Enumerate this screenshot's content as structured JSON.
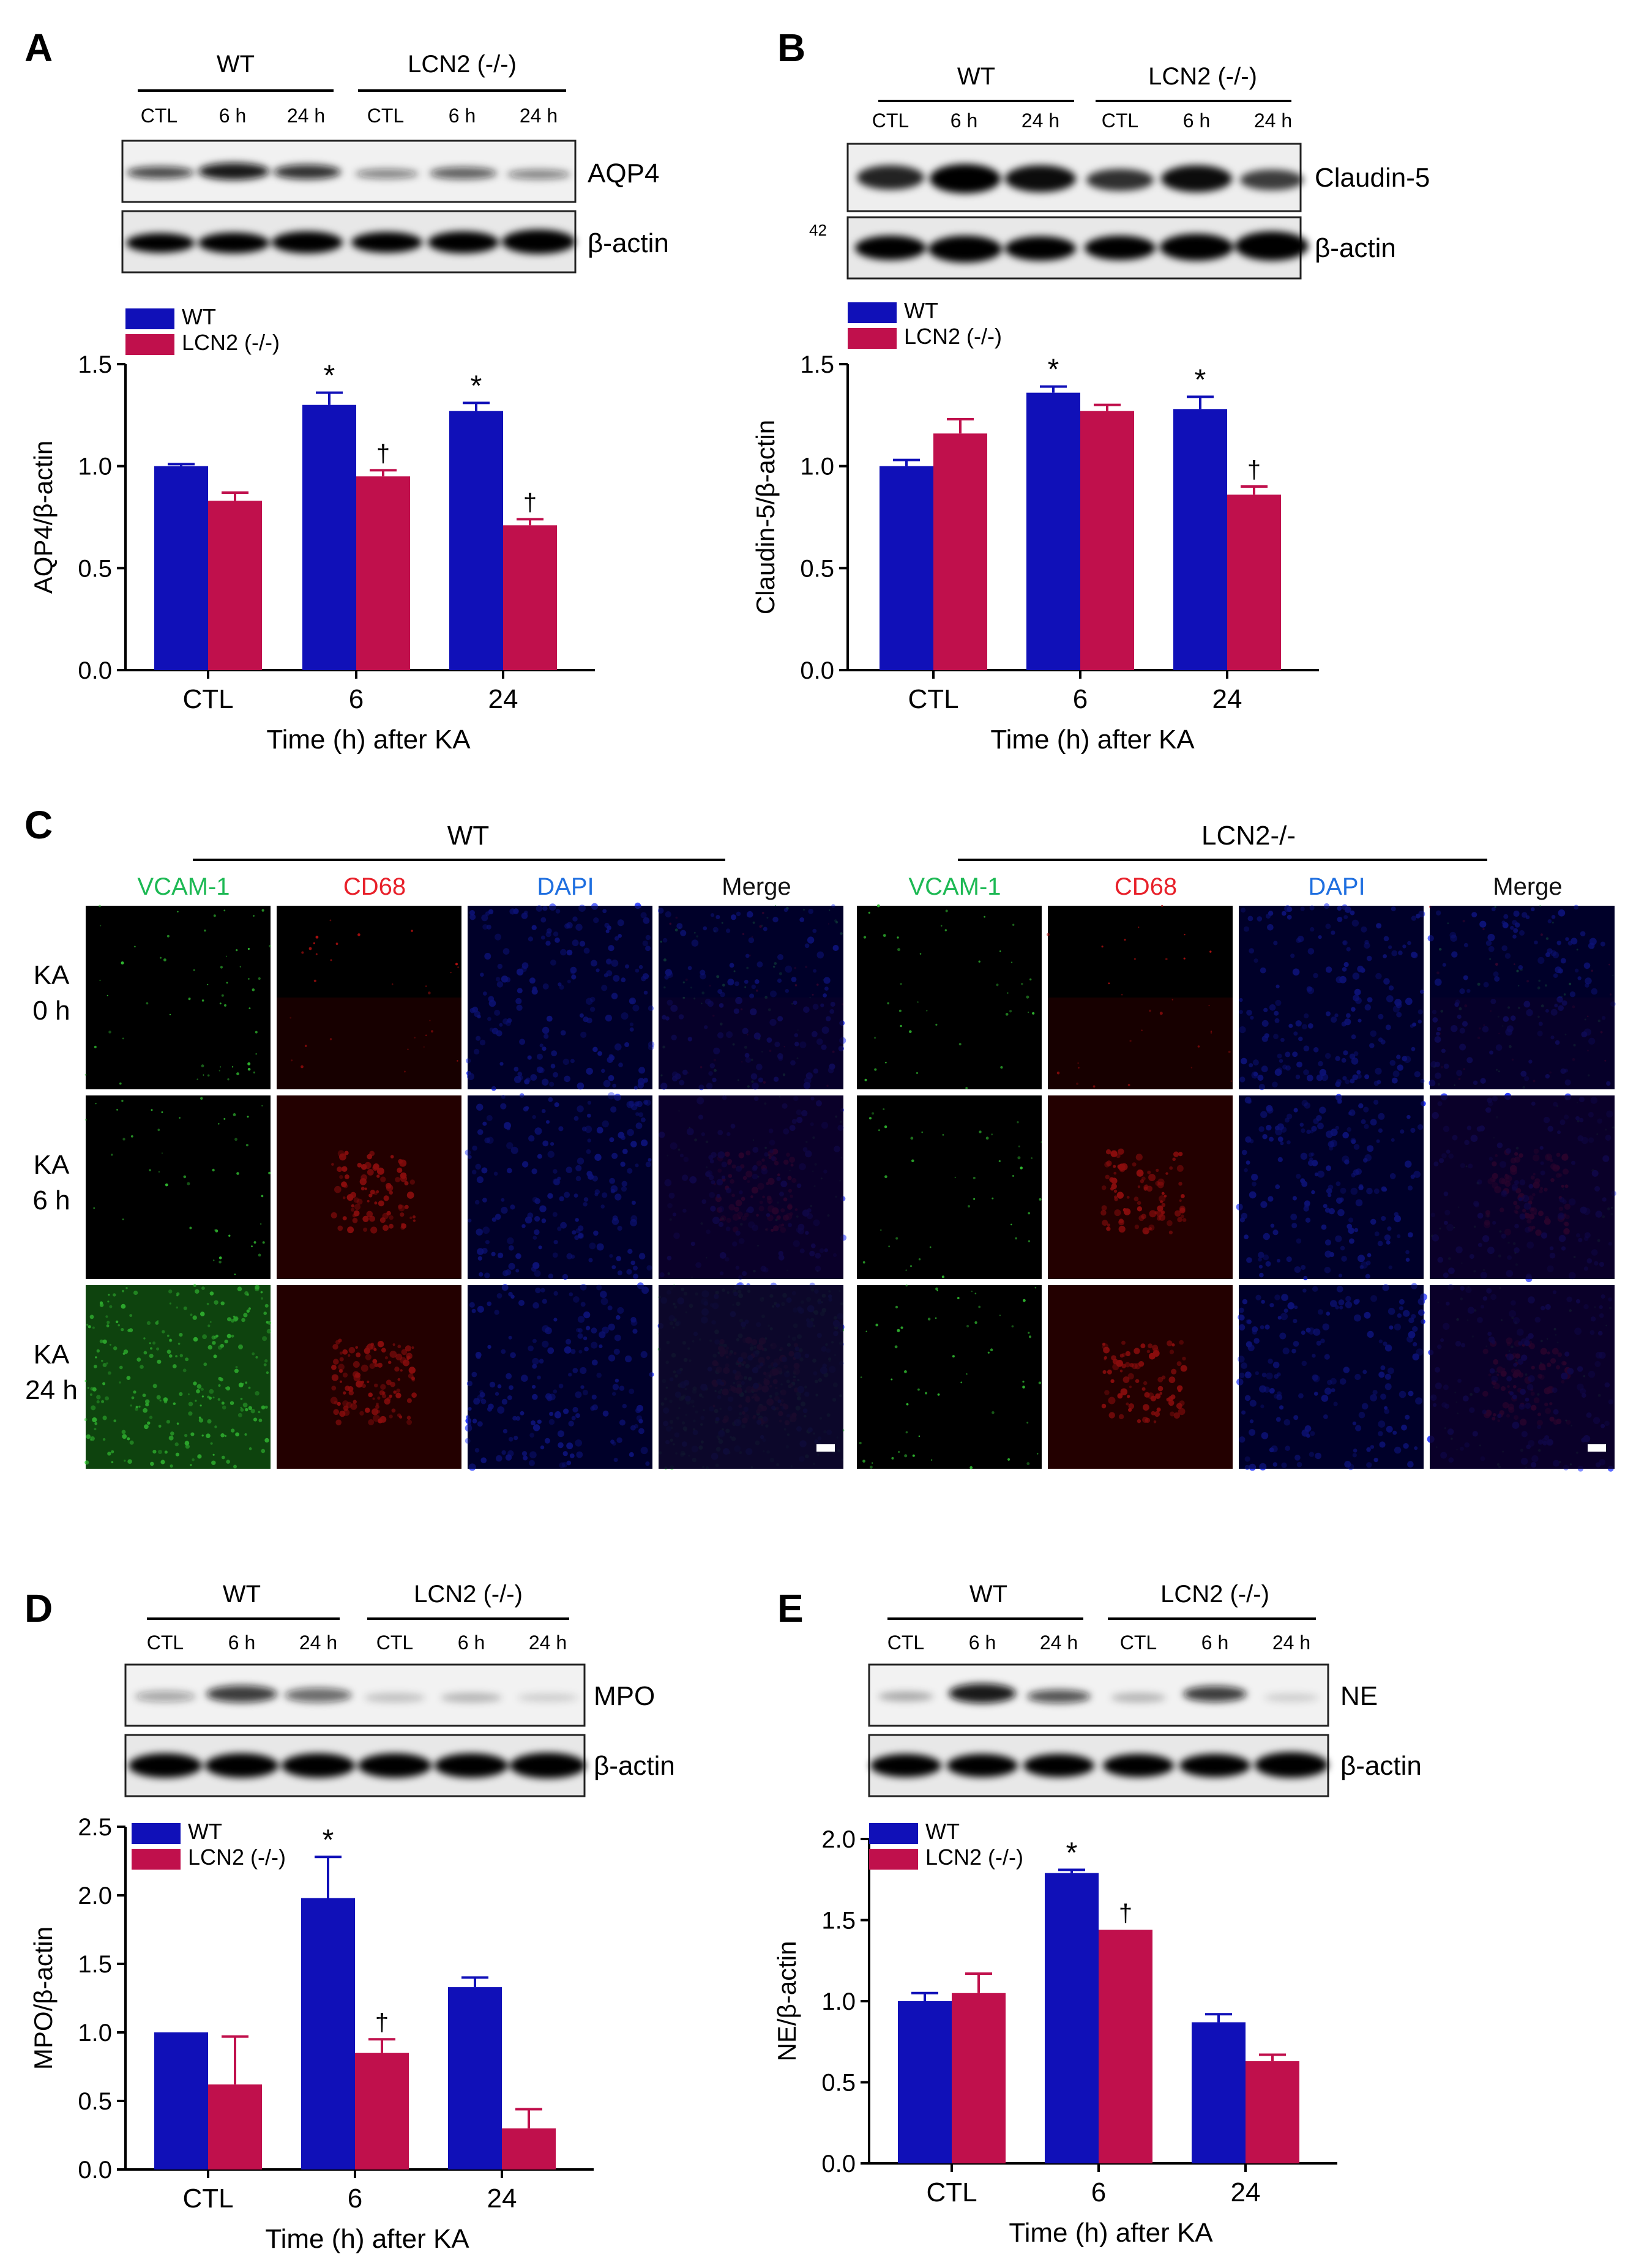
{
  "panels": {
    "A": {
      "letter": "A",
      "blot": {
        "group_wt": "WT",
        "group_ko": "LCN2 (-/-)",
        "lanes": [
          "CTL",
          "6 h",
          "24 h",
          "CTL",
          "6 h",
          "24 h"
        ],
        "protein": "AQP4",
        "loading": "β-actin"
      }
    },
    "B": {
      "letter": "B",
      "blot": {
        "group_wt": "WT",
        "group_ko": "LCN2 (-/-)",
        "lanes": [
          "CTL",
          "6 h",
          "24 h",
          "CTL",
          "6 h",
          "24 h"
        ],
        "protein": "Claudin-5",
        "loading": "β-actin",
        "marker": "42"
      }
    },
    "C": {
      "letter": "C",
      "group_wt": "WT",
      "group_ko": "LCN2-/-",
      "channels": [
        "VCAM-1",
        "CD68",
        "DAPI",
        "Merge"
      ],
      "channel_colors": [
        "#1db954",
        "#e8202a",
        "#1f6fe0",
        "#111111"
      ],
      "rows": [
        "KA\n0 h",
        "KA\n6 h",
        "KA\n24 h"
      ]
    },
    "D": {
      "letter": "D",
      "blot": {
        "group_wt": "WT",
        "group_ko": "LCN2 (-/-)",
        "lanes": [
          "CTL",
          "6 h",
          "24 h",
          "CTL",
          "6 h",
          "24 h"
        ],
        "protein": "MPO",
        "loading": "β-actin"
      }
    },
    "E": {
      "letter": "E",
      "blot": {
        "group_wt": "WT",
        "group_ko": "LCN2 (-/-)",
        "lanes": [
          "CTL",
          "6 h",
          "24 h",
          "CTL",
          "6 h",
          "24 h"
        ],
        "protein": "NE",
        "loading": "β-actin"
      }
    }
  },
  "colors": {
    "wt": "#1010b8",
    "ko": "#c0104c"
  },
  "chart_data": [
    {
      "panel": "A",
      "type": "bar",
      "categories": [
        "CTL",
        "6",
        "24"
      ],
      "series": [
        {
          "name": "WT",
          "values": [
            1.0,
            1.3,
            1.27
          ],
          "errors": [
            0.01,
            0.06,
            0.04
          ],
          "marks": [
            "",
            "*",
            "*"
          ]
        },
        {
          "name": "LCN2 (-/-)",
          "values": [
            0.83,
            0.95,
            0.71
          ],
          "errors": [
            0.04,
            0.03,
            0.03
          ],
          "marks": [
            "",
            "†",
            "†"
          ]
        }
      ],
      "xlabel": "Time (h) after  KA",
      "ylabel": "AQP4/β-actin",
      "ylim": [
        0,
        1.5
      ],
      "yticks": [
        "0.0",
        "0.5",
        "1.0",
        "1.5"
      ],
      "legend": "top-left"
    },
    {
      "panel": "B",
      "type": "bar",
      "categories": [
        "CTL",
        "6",
        "24"
      ],
      "series": [
        {
          "name": "WT",
          "values": [
            1.0,
            1.36,
            1.28
          ],
          "errors": [
            0.03,
            0.03,
            0.06
          ],
          "marks": [
            "",
            "*",
            "*"
          ]
        },
        {
          "name": "LCN2 (-/-)",
          "values": [
            1.16,
            1.27,
            0.86
          ],
          "errors": [
            0.07,
            0.03,
            0.04
          ],
          "marks": [
            "",
            "",
            "†"
          ]
        }
      ],
      "xlabel": "Time (h) after  KA",
      "ylabel": "Claudin-5/β-actin",
      "ylim": [
        0,
        1.5
      ],
      "yticks": [
        "0.0",
        "0.5",
        "1.0",
        "1.5"
      ],
      "legend": "top-left"
    },
    {
      "panel": "D",
      "type": "bar",
      "categories": [
        "CTL",
        "6",
        "24"
      ],
      "series": [
        {
          "name": "WT",
          "values": [
            1.0,
            1.98,
            1.33
          ],
          "errors": [
            0.0,
            0.3,
            0.07
          ],
          "marks": [
            "",
            "*",
            ""
          ]
        },
        {
          "name": "LCN2 (-/-)",
          "values": [
            0.62,
            0.85,
            0.3
          ],
          "errors": [
            0.35,
            0.1,
            0.14
          ],
          "marks": [
            "",
            "†",
            ""
          ]
        }
      ],
      "xlabel": "Time (h) after  KA",
      "ylabel": "MPO/β-actin",
      "ylim": [
        0,
        2.5
      ],
      "yticks": [
        "0.0",
        "0.5",
        "1.0",
        "1.5",
        "2.0",
        "2.5"
      ],
      "legend": "top-left"
    },
    {
      "panel": "E",
      "type": "bar",
      "categories": [
        "CTL",
        "6",
        "24"
      ],
      "series": [
        {
          "name": "WT",
          "values": [
            1.0,
            1.79,
            0.87
          ],
          "errors": [
            0.05,
            0.02,
            0.05
          ],
          "marks": [
            "",
            "*",
            ""
          ]
        },
        {
          "name": "LCN2 (-/-)",
          "values": [
            1.05,
            1.44,
            0.63
          ],
          "errors": [
            0.12,
            0.0,
            0.04
          ],
          "marks": [
            "",
            "†",
            ""
          ]
        }
      ],
      "xlabel": "Time (h) after  KA",
      "ylabel": "NE/β-actin",
      "ylim": [
        0,
        2.0
      ],
      "yticks": [
        "0.0",
        "0.5",
        "1.0",
        "1.5",
        "2.0"
      ],
      "legend": "top-left"
    }
  ]
}
